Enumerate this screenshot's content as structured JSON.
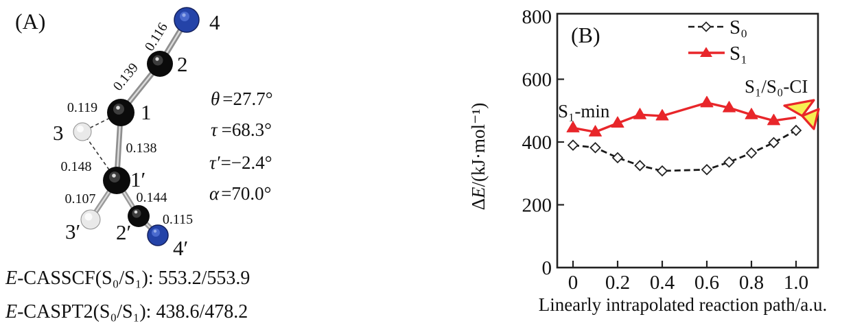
{
  "panel_a": {
    "tag": "(A)",
    "atom_labels": {
      "a4": "4",
      "a2": "2",
      "a1": "1",
      "a3": "3",
      "a1p": "1′",
      "a3p": "3′",
      "a2p": "2′",
      "a4p": "4′"
    },
    "bond_lengths": {
      "n4_c2": "0.116",
      "c2_c1": "0.139",
      "c1_h3": "0.119",
      "c1_c1p": "0.138",
      "h3_c1p": "0.148",
      "c1p_h3p": "0.107",
      "c1p_c2p": "0.144",
      "c2p_n4p": "0.115"
    },
    "angles": [
      {
        "symbol": "θ",
        "value": "=27.7°"
      },
      {
        "symbol": "τ",
        "value": "=68.3°"
      },
      {
        "symbol": "τ′",
        "value": "=−2.4°"
      },
      {
        "symbol": "α",
        "value": "=70.0°"
      }
    ],
    "energies": [
      {
        "prefix": "E",
        "rest": "-CASSCF(S₀/S₁): 553.2/553.9"
      },
      {
        "prefix": "E",
        "rest": "-CASPT2(S₀/S₁): 438.6/478.2"
      }
    ],
    "atom_colors": {
      "carbon": "#0b0b0b",
      "nitrogen_blue": "#2443a8",
      "hydrogen_white": "#e9e9e9"
    }
  },
  "panel_b": {
    "tag": "(B)",
    "annotations": {
      "s1_min": "S₁-min",
      "ci": "S₁/S₀-CI"
    },
    "ylabel_parts": {
      "delta": "Δ",
      "e": "E",
      "rest": "/(kJ·mol⁻¹)"
    }
  },
  "chart_data": {
    "type": "line",
    "x": [
      0,
      0.1,
      0.2,
      0.3,
      0.4,
      0.6,
      0.7,
      0.8,
      0.9,
      1.0
    ],
    "series": [
      {
        "name": "S₀",
        "style": "dashed",
        "marker": "diamond",
        "color": "#1a1a1a",
        "values": [
          390,
          382,
          350,
          325,
          308,
          312,
          336,
          365,
          398,
          437
        ]
      },
      {
        "name": "S₁",
        "style": "solid",
        "marker": "triangle",
        "color": "#e8262a",
        "end_marker": "conical-intersection",
        "values": [
          445,
          432,
          460,
          487,
          483,
          525,
          509,
          487,
          468,
          478
        ]
      }
    ],
    "title": "",
    "xlabel": "Linearly intrapolated reaction path/a.u.",
    "ylabel": "ΔE/(kJ·mol⁻¹)",
    "xticks": [
      0,
      0.2,
      0.4,
      0.6,
      0.8,
      1.0
    ],
    "xtick_labels": [
      "0",
      "0.2",
      "0.4",
      "0.6",
      "0.8",
      "1.0"
    ],
    "yticks": [
      0,
      200,
      400,
      600,
      800
    ],
    "ytick_labels": [
      "0",
      "200",
      "400",
      "600",
      "800"
    ],
    "xlim": [
      -0.07,
      1.1
    ],
    "ylim": [
      0,
      800
    ],
    "grid": false,
    "legend_position": "top-right-inside",
    "annotations": [
      "S₁-min",
      "S₁/S₀-CI"
    ]
  },
  "colors": {
    "s1_red": "#e8262a",
    "ci_yellow": "#f7ef52",
    "axis_black": "#222222"
  }
}
